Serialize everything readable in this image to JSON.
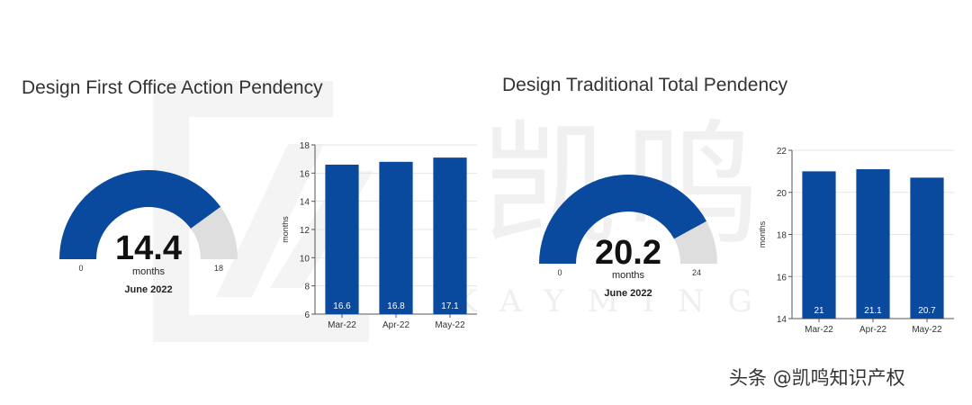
{
  "watermark": {
    "text_cn": "凯鸣",
    "text_en": "KAYMING"
  },
  "attribution": "头条 @凯鸣知识产权",
  "colors": {
    "bar": "#0a4a9e",
    "gauge_fill": "#0a4a9e",
    "gauge_track": "#dedede",
    "axis": "#555555",
    "grid": "#e6e6e6"
  },
  "chart_data": [
    {
      "type": "gauge",
      "title": "Design First Office Action Pendency",
      "value": 14.4,
      "value_label": "14.4",
      "unit": "months",
      "min": 0,
      "max": 18,
      "min_label": "0",
      "max_label": "18",
      "date_label": "June 2022"
    },
    {
      "type": "bar",
      "categories": [
        "Mar-22",
        "Apr-22",
        "May-22"
      ],
      "values": [
        16.6,
        16.8,
        17.1
      ],
      "value_labels": [
        "16.6",
        "16.8",
        "17.1"
      ],
      "ylabel": "months",
      "ylim": [
        6,
        18
      ],
      "yticks": [
        6,
        8,
        10,
        12,
        14,
        16,
        18
      ],
      "grid": true
    },
    {
      "type": "gauge",
      "title": "Design Traditional Total Pendency",
      "value": 20.2,
      "value_label": "20.2",
      "unit": "months",
      "min": 0,
      "max": 24,
      "min_label": "0",
      "max_label": "24",
      "date_label": "June 2022"
    },
    {
      "type": "bar",
      "categories": [
        "Mar-22",
        "Apr-22",
        "May-22"
      ],
      "values": [
        21,
        21.1,
        20.7
      ],
      "value_labels": [
        "21",
        "21.1",
        "20.7"
      ],
      "ylabel": "months",
      "ylim": [
        14,
        22
      ],
      "yticks": [
        14,
        16,
        18,
        20,
        22
      ],
      "grid": true
    }
  ]
}
